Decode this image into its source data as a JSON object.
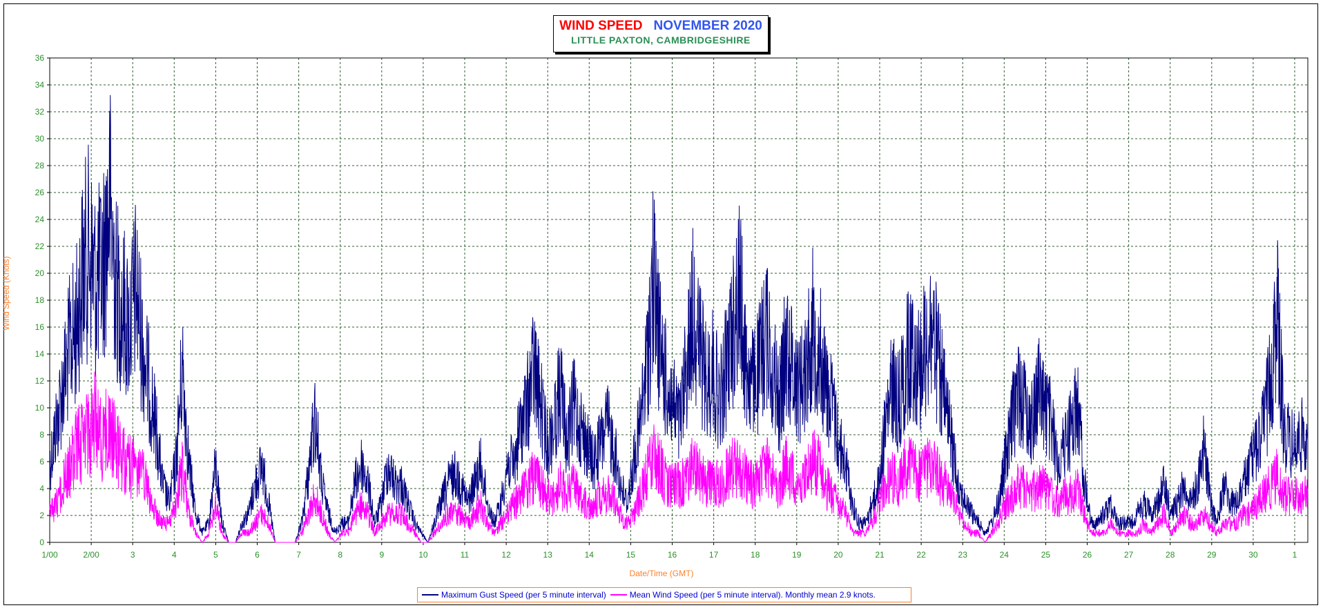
{
  "chart_data": {
    "type": "line",
    "title": "WIND SPEED",
    "title_period": "NOVEMBER 2020",
    "subtitle": "LITTLE PAXTON, CAMBRIDGESHIRE",
    "xlabel": "Date/Time (GMT)",
    "ylabel": "Wind Speed (Knots)",
    "ylim": [
      0,
      36
    ],
    "xlim_days": [
      1,
      31.37
    ],
    "grid": true,
    "legend_position": "bottom-center",
    "y_ticks": [
      "0",
      "2",
      "4",
      "6",
      "8",
      "10",
      "12",
      "14",
      "16",
      "18",
      "20",
      "22",
      "24",
      "26",
      "28",
      "30",
      "32",
      "34",
      "36"
    ],
    "x_ticks": [
      "1/00",
      "2/00",
      "3",
      "4",
      "5",
      "6",
      "7",
      "8",
      "9",
      "10",
      "11",
      "12",
      "13",
      "14",
      "15",
      "16",
      "17",
      "18",
      "19",
      "20",
      "21",
      "22",
      "23",
      "24",
      "25",
      "26",
      "27",
      "28",
      "29",
      "30",
      "1"
    ],
    "series": [
      {
        "name": "Maximum Gust Speed (per 5 minute interval)",
        "color": "#000080",
        "envelope_note": "approximate, 3-hourly peak values",
        "values": [
          8,
          12,
          16,
          20,
          22,
          28,
          30,
          26,
          28,
          35,
          26,
          24,
          22,
          26,
          20,
          16,
          12,
          6,
          4,
          8,
          18,
          8,
          3,
          1,
          2,
          8,
          2,
          0,
          0,
          2,
          3,
          6,
          8,
          4,
          0,
          0,
          0,
          0,
          2,
          7,
          13,
          6,
          3,
          1,
          2,
          2,
          6,
          8,
          6,
          2,
          4,
          8,
          6,
          6,
          4,
          2,
          1,
          0,
          2,
          4,
          6,
          7,
          6,
          4,
          6,
          8,
          4,
          2,
          4,
          8,
          8,
          12,
          14,
          18,
          14,
          10,
          12,
          16,
          10,
          14,
          12,
          10,
          8,
          10,
          12,
          10,
          6,
          4,
          8,
          12,
          18,
          27,
          20,
          16,
          14,
          12,
          18,
          24,
          20,
          16,
          18,
          14,
          18,
          22,
          26,
          18,
          16,
          18,
          22,
          18,
          14,
          20,
          18,
          16,
          18,
          22,
          20,
          16,
          14,
          10,
          8,
          4,
          2,
          2,
          4,
          6,
          12,
          16,
          14,
          18,
          20,
          18,
          20,
          22,
          18,
          14,
          10,
          6,
          4,
          3,
          2,
          1,
          2,
          4,
          8,
          12,
          16,
          14,
          12,
          16,
          14,
          12,
          8,
          10,
          12,
          14,
          6,
          2,
          2,
          3,
          4,
          2,
          2,
          2,
          3,
          4,
          3,
          4,
          6,
          3,
          4,
          6,
          4,
          6,
          10,
          4,
          2,
          6,
          4,
          4,
          6,
          8,
          10,
          12,
          16,
          24,
          12,
          10,
          10,
          11,
          12
        ]
      },
      {
        "name": "Mean Wind Speed (per 5 minute interval). Monthly mean 2.9 knots.",
        "color": "#ff00ff",
        "envelope_note": "approximate, 3-hourly peak values",
        "monthly_mean": 2.9,
        "values": [
          3,
          4,
          6,
          8,
          10,
          11,
          12,
          13,
          11,
          12,
          10,
          9,
          8,
          8,
          7,
          5,
          3,
          2,
          2,
          4,
          8,
          3,
          1,
          0,
          1,
          4,
          1,
          0,
          0,
          1,
          1,
          2,
          3,
          2,
          0,
          0,
          0,
          0,
          1,
          3,
          5,
          3,
          1,
          0,
          1,
          1,
          3,
          4,
          3,
          1,
          2,
          3,
          3,
          3,
          2,
          1,
          0,
          0,
          1,
          2,
          3,
          3,
          3,
          2,
          3,
          4,
          2,
          1,
          2,
          3,
          4,
          5,
          6,
          7,
          6,
          5,
          5,
          6,
          5,
          6,
          5,
          4,
          4,
          5,
          5,
          5,
          3,
          2,
          3,
          5,
          7,
          9,
          8,
          6,
          6,
          6,
          7,
          8,
          7,
          6,
          7,
          6,
          7,
          8,
          8,
          7,
          6,
          7,
          8,
          7,
          6,
          8,
          7,
          6,
          7,
          9,
          8,
          6,
          5,
          4,
          3,
          1,
          1,
          1,
          2,
          4,
          6,
          7,
          6,
          8,
          8,
          7,
          8,
          8,
          7,
          6,
          5,
          3,
          2,
          1,
          1,
          0,
          1,
          2,
          4,
          5,
          6,
          6,
          5,
          6,
          6,
          5,
          4,
          5,
          5,
          6,
          3,
          1,
          1,
          1,
          2,
          1,
          1,
          1,
          1,
          2,
          1,
          2,
          3,
          1,
          2,
          3,
          2,
          2,
          3,
          2,
          1,
          2,
          2,
          2,
          3,
          3,
          4,
          5,
          6,
          7,
          5,
          5,
          5,
          5,
          6
        ]
      }
    ]
  },
  "legend": {
    "gust_label": "Maximum Gust Speed (per 5 minute interval)",
    "mean_label": "Mean Wind Speed (per 5 minute interval). Monthly mean 2.9 knots."
  }
}
